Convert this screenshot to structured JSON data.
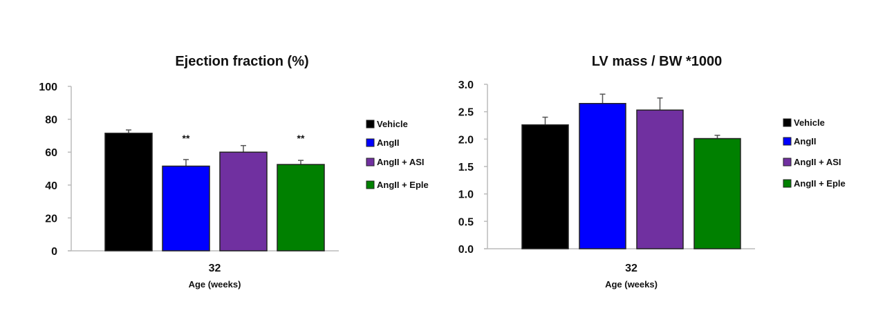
{
  "chart_data": [
    {
      "type": "bar",
      "title": "Ejection fraction (%)",
      "xlabel": "Age (weeks)",
      "ylabel": "",
      "categories": [
        "32"
      ],
      "ylim": [
        0,
        100
      ],
      "yticks": [
        0,
        20,
        40,
        60,
        80,
        100
      ],
      "ytick_labels": [
        "0",
        "20",
        "40",
        "60",
        "80",
        "100"
      ],
      "legend_position": "right",
      "grid": false,
      "series": [
        {
          "name": "Vehicle",
          "color": "#000000",
          "values": [
            71.5
          ],
          "error": [
            2
          ],
          "annotation": ""
        },
        {
          "name": "AngII",
          "color": "#0000ff",
          "values": [
            51.5
          ],
          "error": [
            4
          ],
          "annotation": "**"
        },
        {
          "name": "AngII + ASI",
          "color": "#7030a0",
          "values": [
            60
          ],
          "error": [
            4
          ],
          "annotation": ""
        },
        {
          "name": "AngII + Eple",
          "color": "#008000",
          "values": [
            52.5
          ],
          "error": [
            2.5
          ],
          "annotation": "**"
        }
      ]
    },
    {
      "type": "bar",
      "title": "LV mass / BW *1000",
      "xlabel": "Age (weeks)",
      "ylabel": "",
      "categories": [
        "32"
      ],
      "ylim": [
        0,
        3.0
      ],
      "yticks": [
        0,
        0.5,
        1,
        1.5,
        2,
        2.5,
        3
      ],
      "ytick_labels": [
        "0.0",
        "0.5",
        "1.0",
        "1.5",
        "2.0",
        "2.5",
        "3.0"
      ],
      "legend_position": "right",
      "grid": false,
      "series": [
        {
          "name": "Vehicle",
          "color": "#000000",
          "values": [
            2.26
          ],
          "error": [
            0.14
          ],
          "annotation": ""
        },
        {
          "name": "AngII",
          "color": "#0000ff",
          "values": [
            2.65
          ],
          "error": [
            0.17
          ],
          "annotation": ""
        },
        {
          "name": "AngII + ASI",
          "color": "#7030a0",
          "values": [
            2.53
          ],
          "error": [
            0.22
          ],
          "annotation": ""
        },
        {
          "name": "AngII + Eple",
          "color": "#008000",
          "values": [
            2.01
          ],
          "error": [
            0.06
          ],
          "annotation": ""
        }
      ]
    }
  ]
}
